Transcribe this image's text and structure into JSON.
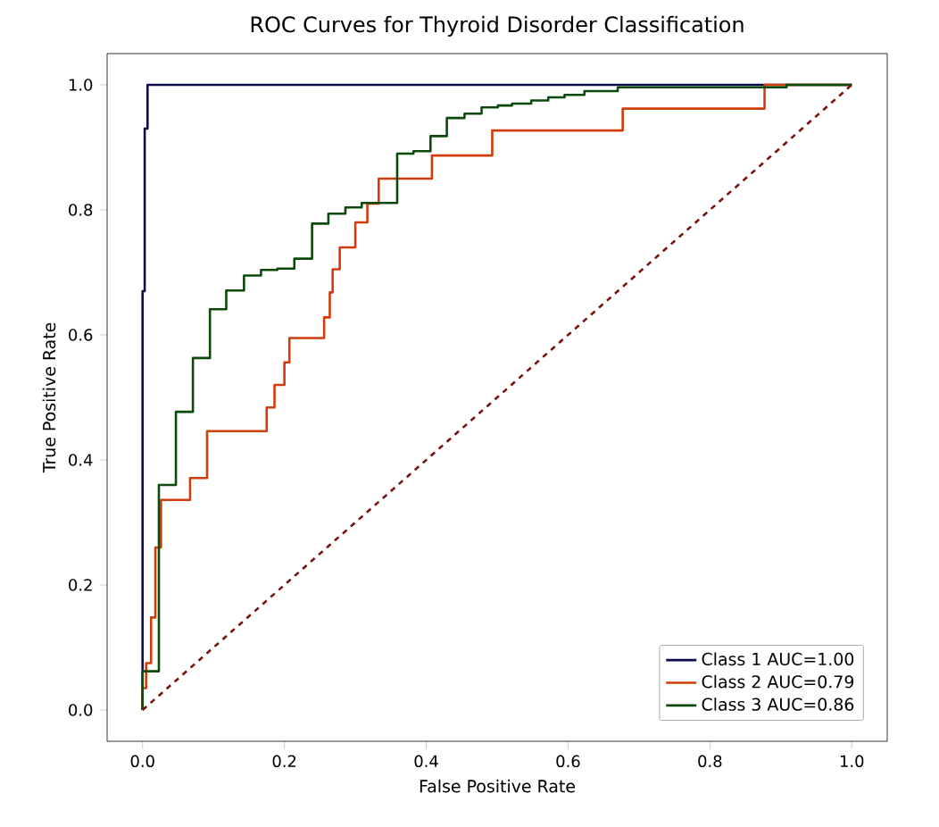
{
  "chart_data": {
    "type": "line",
    "title": "ROC Curves for Thyroid Disorder Classification",
    "xlabel": "False Positive Rate",
    "ylabel": "True Positive Rate",
    "xlim": [
      -0.05,
      1.05
    ],
    "ylim": [
      -0.05,
      1.05
    ],
    "xticks": [
      {
        "value": 0,
        "label": "0.0"
      },
      {
        "value": 0.2,
        "label": "0.2"
      },
      {
        "value": 0.4,
        "label": "0.4"
      },
      {
        "value": 0.6,
        "label": "0.6"
      },
      {
        "value": 0.8,
        "label": "0.8"
      },
      {
        "value": 1,
        "label": "1.0"
      }
    ],
    "yticks": [
      {
        "value": 0,
        "label": "0.0"
      },
      {
        "value": 0.2,
        "label": "0.2"
      },
      {
        "value": 0.4,
        "label": "0.4"
      },
      {
        "value": 0.6,
        "label": "0.6"
      },
      {
        "value": 0.8,
        "label": "0.8"
      },
      {
        "value": 1,
        "label": "1.0"
      }
    ],
    "grid": false,
    "legend": "bottom right",
    "series": [
      {
        "name": "Class 1 AUC=1.00",
        "color": "#0d0d4d",
        "x": [
          0,
          0,
          0.003,
          0.003,
          0.007,
          0.007,
          1
        ],
        "values": [
          0,
          0.67,
          0.67,
          0.93,
          0.93,
          1,
          1
        ]
      },
      {
        "name": "Class 2 AUC=0.79",
        "color": "#d23c0a",
        "x": [
          0,
          0,
          0.005,
          0.005,
          0.012,
          0.012,
          0.018,
          0.018,
          0.026,
          0.026,
          0.067,
          0.067,
          0.091,
          0.091,
          0.175,
          0.175,
          0.186,
          0.186,
          0.2,
          0.2,
          0.207,
          0.207,
          0.256,
          0.256,
          0.264,
          0.264,
          0.268,
          0.268,
          0.278,
          0.278,
          0.3,
          0.3,
          0.317,
          0.317,
          0.333,
          0.333,
          0.408,
          0.408,
          0.493,
          0.493,
          0.677,
          0.677,
          0.877,
          0.877,
          1
        ],
        "values": [
          0,
          0.035,
          0.035,
          0.075,
          0.075,
          0.148,
          0.148,
          0.26,
          0.26,
          0.336,
          0.336,
          0.371,
          0.371,
          0.446,
          0.446,
          0.484,
          0.484,
          0.52,
          0.52,
          0.556,
          0.556,
          0.595,
          0.595,
          0.628,
          0.628,
          0.668,
          0.668,
          0.705,
          0.705,
          0.74,
          0.74,
          0.78,
          0.78,
          0.81,
          0.81,
          0.85,
          0.85,
          0.887,
          0.887,
          0.927,
          0.927,
          0.962,
          0.962,
          1,
          1
        ]
      },
      {
        "name": "Class 3 AUC=0.86",
        "color": "#0b4a0b",
        "x": [
          0,
          0,
          0.023,
          0.023,
          0.047,
          0.047,
          0.071,
          0.071,
          0.095,
          0.095,
          0.118,
          0.118,
          0.143,
          0.143,
          0.167,
          0.167,
          0.19,
          0.19,
          0.214,
          0.214,
          0.239,
          0.239,
          0.262,
          0.262,
          0.286,
          0.286,
          0.309,
          0.309,
          0.359,
          0.359,
          0.382,
          0.382,
          0.406,
          0.406,
          0.429,
          0.429,
          0.454,
          0.454,
          0.478,
          0.478,
          0.501,
          0.501,
          0.521,
          0.521,
          0.548,
          0.548,
          0.572,
          0.572,
          0.595,
          0.595,
          0.623,
          0.623,
          0.67,
          0.67,
          0.908,
          0.908,
          1
        ],
        "values": [
          0,
          0.062,
          0.062,
          0.36,
          0.36,
          0.477,
          0.477,
          0.563,
          0.563,
          0.641,
          0.641,
          0.671,
          0.671,
          0.695,
          0.695,
          0.704,
          0.704,
          0.706,
          0.706,
          0.722,
          0.722,
          0.778,
          0.778,
          0.794,
          0.794,
          0.804,
          0.804,
          0.811,
          0.811,
          0.89,
          0.89,
          0.894,
          0.894,
          0.918,
          0.918,
          0.947,
          0.947,
          0.954,
          0.954,
          0.964,
          0.964,
          0.967,
          0.967,
          0.97,
          0.97,
          0.975,
          0.975,
          0.98,
          0.98,
          0.984,
          0.984,
          0.99,
          0.99,
          0.996,
          0.996,
          1,
          1
        ]
      },
      {
        "color": "#7a1010",
        "line_style": "dashed",
        "x": [
          0,
          1
        ],
        "values": [
          0,
          1
        ]
      }
    ]
  }
}
